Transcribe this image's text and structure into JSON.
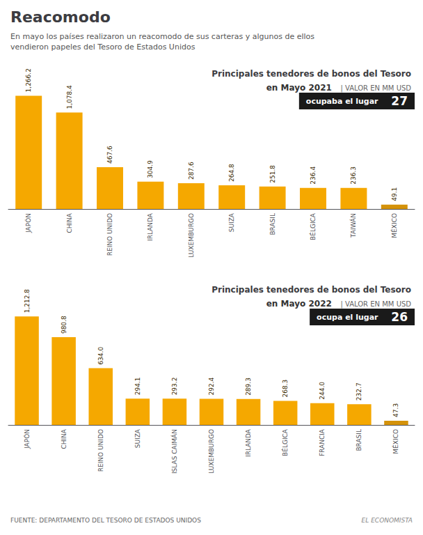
{
  "title": "Reacomodo",
  "subtitle": [
    "En mayo los países realizaron un reacomodo de sus carteras y algunos de ellos",
    "vendieron papeles del Tesoro de Estados Unidos"
  ],
  "annotations": [
    "FUENTE: DEPARTAMENTO DEL TESORO DE ESTADOS UNIDOS",
    "EL ECONOMISTA"
  ],
  "chart_data": [
    {
      "type": "bar",
      "title": "Principales tenedores de bonos del Tesoro",
      "subtitle": "en Mayo 2021",
      "annotations": [
        "| VALOR EN MM USD",
        "ocupaba el lugar",
        "27"
      ],
      "categories": [
        "JAPÓN",
        "CHINA",
        "REINO UNIDO",
        "IRLANDA",
        "LUXEMBURGO",
        "SUIZA",
        "BRASIL",
        "BÉLGICA",
        "TAIWÁN",
        "MÉXICO"
      ],
      "values": [
        1266.2,
        1078.4,
        467.6,
        304.9,
        287.6,
        264.8,
        251.8,
        236.4,
        236.3,
        49.1
      ],
      "value_labels": [
        "1,266.2",
        "1,078.4",
        "467.6",
        "304.9",
        "287.6",
        "264.8",
        "251.8",
        "236.4",
        "236.3",
        "49.1"
      ],
      "colors": [
        "#f5a800",
        "#f5a800",
        "#f5a800",
        "#f5a800",
        "#f5a800",
        "#f5a800",
        "#f5a800",
        "#f5a800",
        "#f5a800",
        "#d4920a"
      ],
      "ylim": [
        0,
        1480
      ],
      "data_labels": true,
      "tick_labels": "x",
      "grid": false
    },
    {
      "type": "bar",
      "title": "Principales tenedores de bonos del Tesoro",
      "subtitle": "en Mayo 2022",
      "annotations": [
        "| VALOR EN MM USD",
        "ocupa el lugar",
        "26"
      ],
      "categories": [
        "JAPÓN",
        "CHINA",
        "REINO UNIDO",
        "SUIZA",
        "ISLAS CAIMÁN",
        "LUXEMBURGO",
        "IRLANDA",
        "BÉLGICA",
        "FRANCIA",
        "BRASIL",
        "MÉXICO"
      ],
      "values": [
        1212.8,
        980.8,
        634.0,
        294.1,
        293.2,
        292.4,
        289.3,
        268.3,
        244.0,
        232.7,
        47.3
      ],
      "value_labels": [
        "1,212.8",
        "980.8",
        "634.0",
        "294.1",
        "293.2",
        "292.4",
        "289.3",
        "268.3",
        "244.0",
        "232.7",
        "47.3"
      ],
      "colors": [
        "#f5a800",
        "#f5a800",
        "#f5a800",
        "#f5a800",
        "#f5a800",
        "#f5a800",
        "#f5a800",
        "#f5a800",
        "#f5a800",
        "#f5a800",
        "#d4920a"
      ],
      "ylim": [
        0,
        1480
      ],
      "data_labels": true,
      "tick_labels": "x",
      "grid": false
    }
  ]
}
